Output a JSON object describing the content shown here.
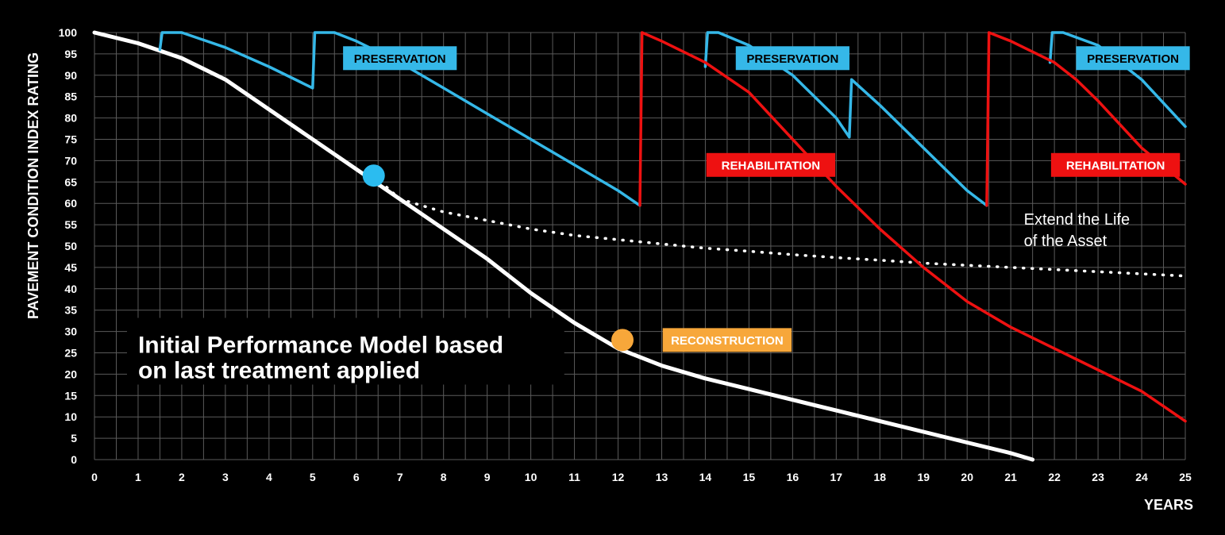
{
  "chart_data": {
    "type": "line",
    "ylabel": "PAVEMENT CONDITION INDEX RATING",
    "xlabel": "YEARS",
    "xlim": [
      0,
      25
    ],
    "ylim": [
      0,
      100
    ],
    "x_ticks": [
      0,
      1,
      2,
      3,
      4,
      5,
      6,
      7,
      8,
      9,
      10,
      11,
      12,
      13,
      14,
      15,
      16,
      17,
      18,
      19,
      20,
      21,
      22,
      23,
      24,
      25
    ],
    "y_ticks": [
      0,
      5,
      10,
      15,
      20,
      25,
      30,
      35,
      40,
      45,
      50,
      55,
      60,
      65,
      70,
      75,
      80,
      85,
      90,
      95,
      100
    ],
    "grid": true,
    "series": [
      {
        "role": "initial",
        "color": "#ffffff",
        "style": "solid",
        "points": [
          [
            0,
            100
          ],
          [
            1,
            97.5
          ],
          [
            2,
            94
          ],
          [
            3,
            89
          ],
          [
            4,
            82
          ],
          [
            5,
            75
          ],
          [
            6,
            68
          ],
          [
            7,
            61
          ],
          [
            8,
            54
          ],
          [
            9,
            47
          ],
          [
            10,
            39
          ],
          [
            11,
            32
          ],
          [
            12,
            26
          ],
          [
            13,
            22
          ],
          [
            14,
            19
          ],
          [
            15,
            16.5
          ],
          [
            16,
            14
          ],
          [
            17,
            11.5
          ],
          [
            18,
            9
          ],
          [
            19,
            6.5
          ],
          [
            20,
            4
          ],
          [
            21,
            1.5
          ],
          [
            21.5,
            0
          ]
        ]
      },
      {
        "role": "extended",
        "color": "#ffffff",
        "style": "dotted",
        "points": [
          [
            6.4,
            66.5
          ],
          [
            7,
            61
          ],
          [
            8,
            58
          ],
          [
            9,
            56
          ],
          [
            10,
            54
          ],
          [
            11,
            52.5
          ],
          [
            12,
            51.5
          ],
          [
            13,
            50.5
          ],
          [
            14,
            49.5
          ],
          [
            15,
            48.8
          ],
          [
            16,
            48
          ],
          [
            17,
            47.3
          ],
          [
            18,
            46.7
          ],
          [
            19,
            46
          ],
          [
            20,
            45.5
          ],
          [
            21,
            45
          ],
          [
            22,
            44.5
          ],
          [
            23,
            44
          ],
          [
            24,
            43.5
          ],
          [
            25,
            43
          ]
        ]
      },
      {
        "role": "preservation",
        "color": "#35b8e8",
        "style": "solid",
        "points": [
          [
            1.5,
            96
          ],
          [
            1.55,
            100
          ],
          [
            2,
            100
          ],
          [
            3,
            96.5
          ],
          [
            4,
            92
          ],
          [
            5,
            87
          ],
          [
            5.05,
            100
          ],
          [
            5.5,
            100
          ],
          [
            6,
            98
          ],
          [
            7,
            93
          ],
          [
            8,
            87
          ],
          [
            9,
            81
          ],
          [
            10,
            75
          ],
          [
            11,
            69
          ],
          [
            12,
            63
          ],
          [
            12.5,
            59.5
          ]
        ]
      },
      {
        "role": "preservation",
        "color": "#35b8e8",
        "style": "solid",
        "points": [
          [
            14,
            92
          ],
          [
            14.05,
            100
          ],
          [
            14.3,
            100
          ],
          [
            15,
            97
          ],
          [
            16,
            90
          ],
          [
            17,
            80
          ],
          [
            17.3,
            75.5
          ],
          [
            17.35,
            89
          ],
          [
            18,
            83
          ],
          [
            19,
            73
          ],
          [
            20,
            63
          ],
          [
            20.45,
            59.5
          ]
        ]
      },
      {
        "role": "preservation",
        "color": "#35b8e8",
        "style": "solid",
        "points": [
          [
            21.9,
            93
          ],
          [
            21.95,
            100
          ],
          [
            22.2,
            100
          ],
          [
            23,
            97
          ],
          [
            24,
            89
          ],
          [
            25,
            78
          ]
        ]
      },
      {
        "role": "rehabilitation",
        "color": "#ee1111",
        "style": "solid",
        "points": [
          [
            12.5,
            59.5
          ],
          [
            12.55,
            100
          ],
          [
            13,
            98
          ],
          [
            14,
            93
          ],
          [
            15,
            86
          ],
          [
            16,
            75
          ],
          [
            17,
            64
          ],
          [
            18,
            54
          ],
          [
            19,
            45
          ],
          [
            20,
            37
          ],
          [
            21,
            31
          ],
          [
            22,
            26
          ],
          [
            23,
            21
          ],
          [
            24,
            16
          ],
          [
            25,
            9
          ]
        ]
      },
      {
        "role": "rehabilitation",
        "color": "#ee1111",
        "style": "solid",
        "points": [
          [
            20.45,
            59.5
          ],
          [
            20.5,
            100
          ],
          [
            21,
            98
          ],
          [
            22,
            93
          ],
          [
            22.5,
            89
          ],
          [
            23,
            84
          ],
          [
            24,
            73
          ],
          [
            25,
            64.5
          ]
        ]
      }
    ],
    "markers": [
      {
        "x": 6.4,
        "y": 66.5,
        "color": "#2bbcf0"
      },
      {
        "x": 12.1,
        "y": 28,
        "color": "#f7a73a"
      }
    ],
    "annotations": [
      {
        "text": "PRESERVATION",
        "x": 7.0,
        "y": 94,
        "color": "#35b8e8",
        "text_color": "#000000",
        "kind": "badge"
      },
      {
        "text": "PRESERVATION",
        "x": 16.0,
        "y": 94,
        "color": "#35b8e8",
        "text_color": "#000000",
        "kind": "badge"
      },
      {
        "text": "PRESERVATION",
        "x": 23.8,
        "y": 94,
        "color": "#35b8e8",
        "text_color": "#000000",
        "kind": "badge"
      },
      {
        "text": "REHABILITATION",
        "x": 15.5,
        "y": 69,
        "color": "#ee1111",
        "text_color": "#ffffff",
        "kind": "badge"
      },
      {
        "text": "REHABILITATION",
        "x": 23.4,
        "y": 69,
        "color": "#ee1111",
        "text_color": "#ffffff",
        "kind": "badge"
      },
      {
        "text": "RECONSTRUCTION",
        "x": 14.5,
        "y": 28,
        "color": "#f7a73a",
        "text_color": "#ffffff",
        "kind": "badge"
      }
    ],
    "notes": [
      {
        "lines": [
          "Extend the Life",
          "of the Asset"
        ],
        "x": 21.3,
        "y": 55,
        "weight": "normal"
      },
      {
        "lines": [
          "Initial Performance Model based",
          "on last treatment applied"
        ],
        "x": 1.0,
        "y": 25,
        "weight": "bold"
      }
    ]
  }
}
